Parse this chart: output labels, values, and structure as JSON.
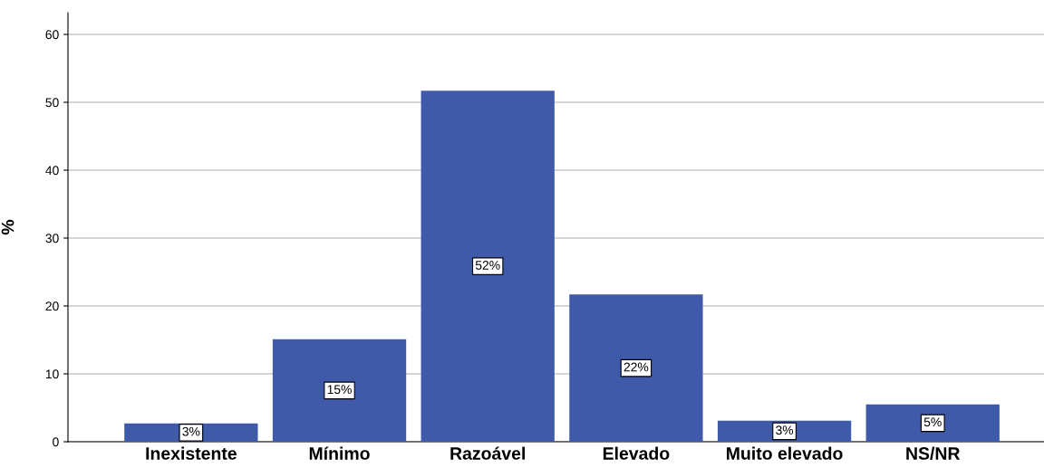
{
  "chart_data": {
    "type": "bar",
    "ylabel": "%",
    "categories": [
      "Inexistente",
      "Mínimo",
      "Razoável",
      "Elevado",
      "Muito elevado",
      "NS/NR"
    ],
    "values": [
      2.7,
      15.1,
      51.7,
      21.7,
      3.1,
      5.5
    ],
    "value_labels": [
      "3%",
      "15%",
      "52%",
      "22%",
      "3%",
      "5%"
    ],
    "color": "#3f5aa8",
    "ylim": [
      0,
      63.2
    ],
    "yticks": [
      0,
      10,
      20,
      30,
      40,
      50,
      60
    ],
    "grid": "y",
    "legend": false
  }
}
